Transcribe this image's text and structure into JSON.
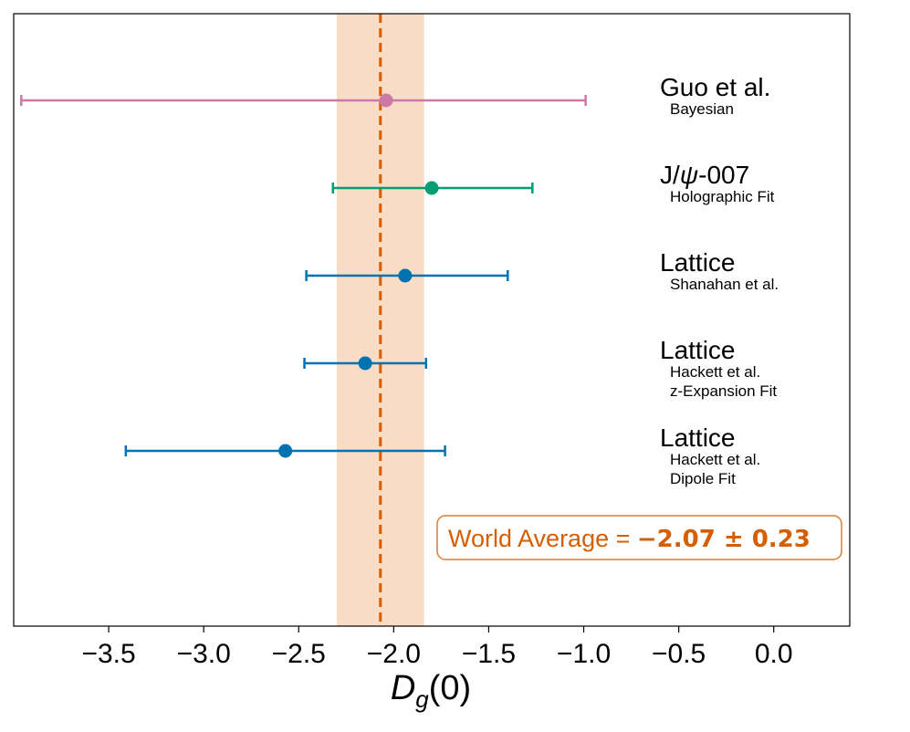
{
  "chart_data": {
    "type": "scatter",
    "subtype": "forest-plot-with-error-bars",
    "title": "",
    "xlabel_main": "D",
    "xlabel_sub": "g",
    "xlabel_tail": "(0)",
    "ylabel": "",
    "xlim": [
      -4.0,
      0.4
    ],
    "x_ticks": [
      -3.5,
      -3.0,
      -2.5,
      -2.0,
      -1.5,
      -1.0,
      -0.5,
      0.0
    ],
    "x_tick_labels": [
      "−3.5",
      "−3.0",
      "−2.5",
      "−2.0",
      "−1.5",
      "−1.0",
      "−0.5",
      "0.0"
    ],
    "grid": false,
    "series": [
      {
        "label": "Guo et al.",
        "sublabel_lines": [
          "Bayesian"
        ],
        "value": -2.04,
        "err_low": -3.96,
        "err_high": -0.99,
        "color": "#cc79a7"
      },
      {
        "label_parts": [
          "J/",
          "ψ",
          "-007"
        ],
        "sublabel_lines": [
          "Holographic Fit"
        ],
        "value": -1.8,
        "err_low": -2.32,
        "err_high": -1.27,
        "color": "#009e73"
      },
      {
        "label": "Lattice",
        "sublabel_lines": [
          "Shanahan et al."
        ],
        "value": -1.94,
        "err_low": -2.46,
        "err_high": -1.4,
        "color": "#0072b2"
      },
      {
        "label": "Lattice",
        "sublabel_lines": [
          "Hackett et al.",
          "z-Expansion Fit"
        ],
        "value": -2.15,
        "err_low": -2.47,
        "err_high": -1.83,
        "color": "#0072b2"
      },
      {
        "label": "Lattice",
        "sublabel_lines": [
          "Hackett et al.",
          "Dipole Fit"
        ],
        "value": -2.57,
        "err_low": -3.41,
        "err_high": -1.73,
        "color": "#0072b2"
      }
    ],
    "world_average": {
      "value": -2.07,
      "uncertainty": 0.23,
      "label_prefix": "World Average = ",
      "label_value": "−2.07 ± 0.23",
      "line_color": "#d55e00",
      "band_color": "#f8dcc6",
      "box_border_color": "#e07b2e"
    }
  }
}
